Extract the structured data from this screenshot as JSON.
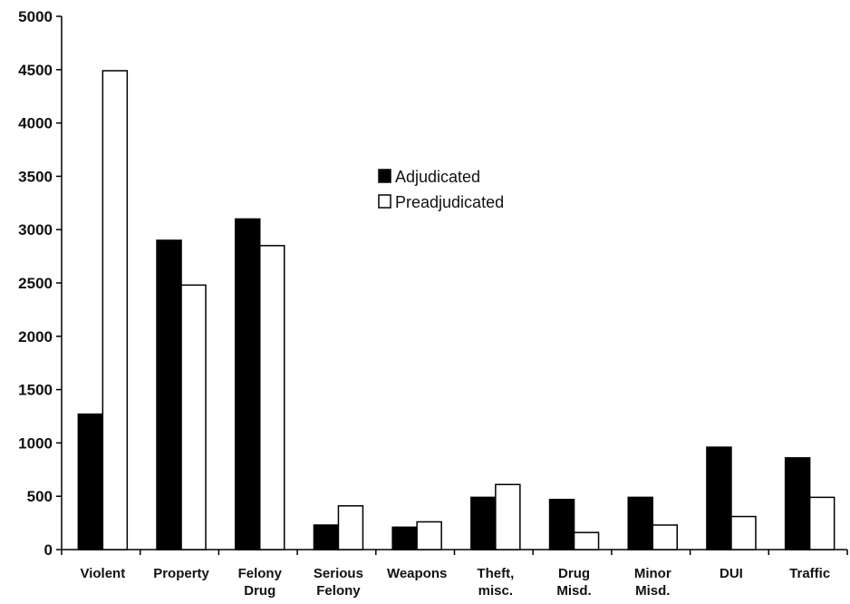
{
  "chart_data": {
    "type": "bar",
    "categories": [
      [
        "Violent"
      ],
      [
        "Property"
      ],
      [
        "Felony",
        "Drug"
      ],
      [
        "Serious",
        "Felony"
      ],
      [
        "Weapons"
      ],
      [
        "Theft,",
        "misc."
      ],
      [
        "Drug",
        "Misd."
      ],
      [
        "Minor",
        "Misd."
      ],
      [
        "DUI"
      ],
      [
        "Traffic"
      ]
    ],
    "series": [
      {
        "name": "Adjudicated",
        "color": "#000000",
        "values": [
          1270,
          2900,
          3100,
          230,
          210,
          490,
          470,
          490,
          960,
          860
        ]
      },
      {
        "name": "Preadjudicated",
        "color": "#ffffff",
        "values": [
          4490,
          2480,
          2850,
          410,
          260,
          610,
          160,
          230,
          310,
          490
        ]
      }
    ],
    "ylim": [
      0,
      5000
    ],
    "yticks": [
      0,
      500,
      1000,
      1500,
      2000,
      2500,
      3000,
      3500,
      4000,
      4500,
      5000
    ],
    "title": "",
    "xlabel": "",
    "ylabel": "",
    "legend_position": "upper-center",
    "grid": false
  }
}
